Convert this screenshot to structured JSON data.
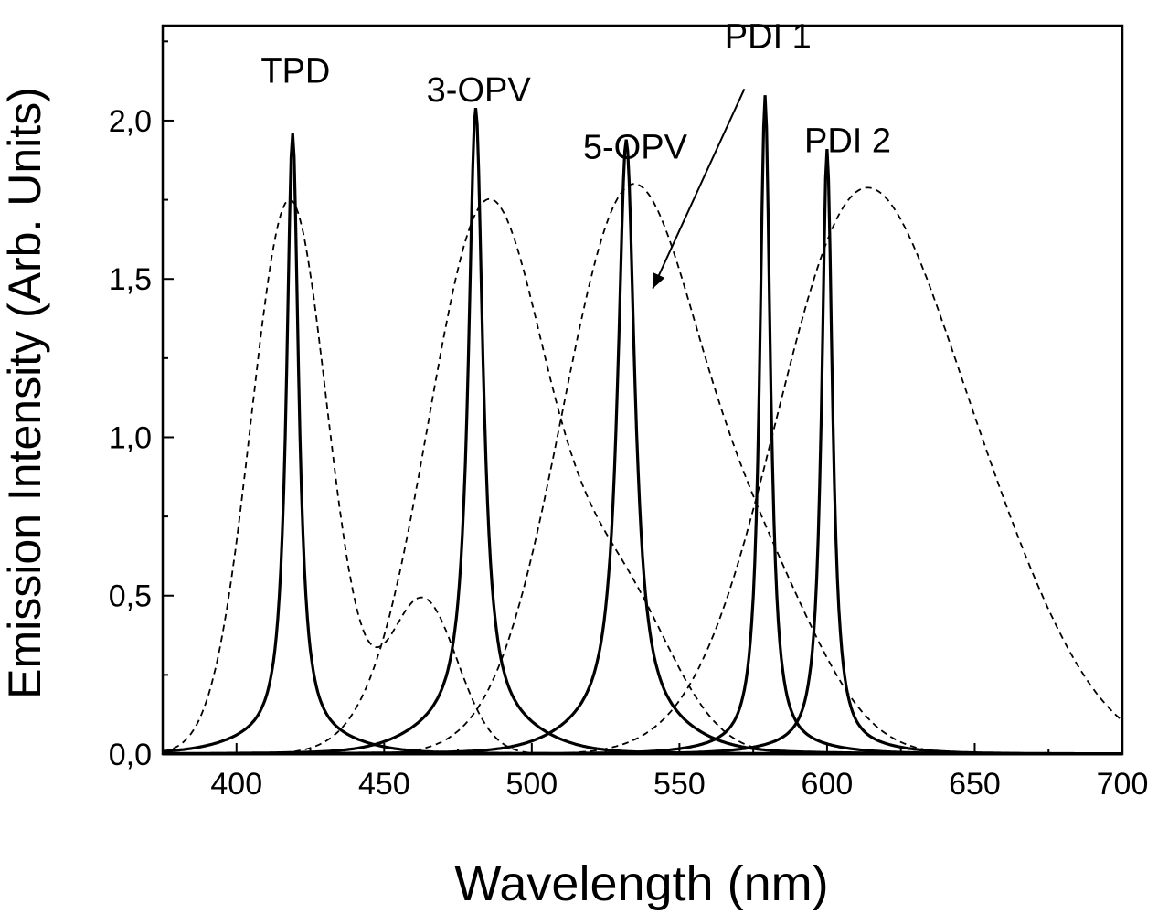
{
  "chart_data": {
    "type": "line",
    "title": "",
    "xlabel": "Wavelength (nm)",
    "ylabel": "Emission Intensity (Arb. Units)",
    "xlim": [
      375,
      700
    ],
    "ylim": [
      0,
      2.3
    ],
    "x_ticks": [
      400,
      450,
      500,
      550,
      600,
      650,
      700
    ],
    "x_tick_labels": [
      "400",
      "450",
      "500",
      "550",
      "600",
      "650",
      "700"
    ],
    "y_ticks": [
      0,
      0.5,
      1.0,
      1.5,
      2.0
    ],
    "y_tick_labels": [
      "0,0",
      "0,5",
      "1,0",
      "1,5",
      "2,0"
    ],
    "grid": false,
    "legend": "none",
    "annotations": [
      {
        "text": "TPD",
        "x": 420,
        "y": 2.12
      },
      {
        "text": "3-OPV",
        "x": 482,
        "y": 2.06
      },
      {
        "text": "5-OPV",
        "x": 535,
        "y": 1.88
      },
      {
        "text": "PDI 1",
        "x": 580,
        "y": 2.23
      },
      {
        "text": "PDI 2",
        "x": 607,
        "y": 1.9
      }
    ],
    "arrow": {
      "from": [
        572,
        2.1
      ],
      "to": [
        541,
        1.47
      ]
    },
    "series": [
      {
        "style": "solid",
        "peak": 419,
        "height": 1.91,
        "width": 2.5,
        "baseline": 0.05
      },
      {
        "style": "solid",
        "peak": 481,
        "height": 1.94,
        "width": 3.0,
        "baseline": 0.1
      },
      {
        "style": "solid",
        "peak": 532,
        "height": 1.84,
        "width": 3.5,
        "baseline": 0.1
      },
      {
        "style": "solid",
        "peak": 579,
        "height": 2.06,
        "width": 2.2,
        "baseline": 0.02
      },
      {
        "style": "solid",
        "peak": 600,
        "height": 1.89,
        "width": 2.2,
        "baseline": 0.02
      },
      {
        "style": "dashed",
        "peak": 418,
        "height": 1.75,
        "width": 13,
        "baseline": 0.0
      },
      {
        "style": "dashed",
        "peak": 485,
        "height": 1.73,
        "width": 20,
        "baseline": 0.0
      },
      {
        "style": "dashed",
        "peak": 533,
        "height": 1.75,
        "width": 23,
        "baseline": 0.0
      },
      {
        "style": "dashed",
        "peak": 610,
        "height": 1.68,
        "width": 28,
        "baseline": 0.0
      }
    ]
  }
}
